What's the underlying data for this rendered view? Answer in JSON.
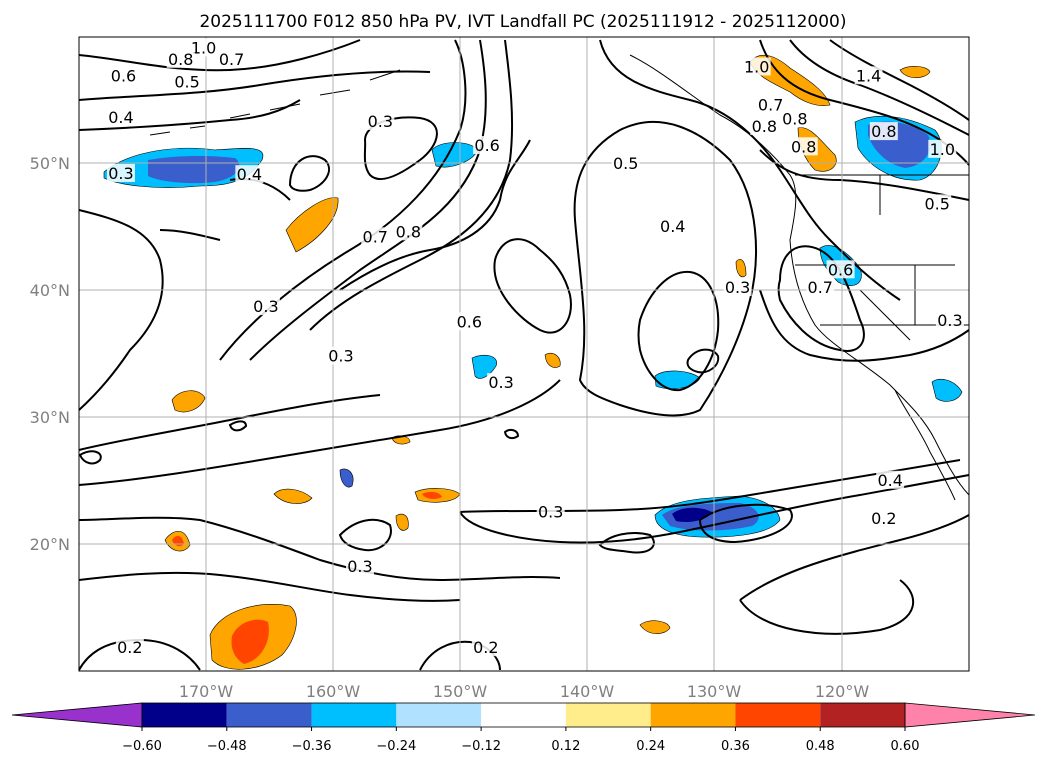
{
  "chart_data": {
    "type": "contour-map",
    "title": "2025111700 F012 850 hPa PV, IVT Landfall PC (2025111912 - 2025112000)",
    "x_range": [
      -180,
      -110
    ],
    "y_range": [
      10,
      60
    ],
    "grid": true,
    "x_ticks": [
      {
        "value": -170,
        "label": "170°W"
      },
      {
        "value": -160,
        "label": "160°W"
      },
      {
        "value": -150,
        "label": "150°W"
      },
      {
        "value": -140,
        "label": "140°W"
      },
      {
        "value": -130,
        "label": "130°W"
      },
      {
        "value": -120,
        "label": "120°W"
      }
    ],
    "y_ticks": [
      {
        "value": 20,
        "label": "20°N"
      },
      {
        "value": 30,
        "label": "30°N"
      },
      {
        "value": 40,
        "label": "40°N"
      },
      {
        "value": 50,
        "label": "50°N"
      }
    ],
    "colorbar": {
      "levels": [
        -0.6,
        -0.48,
        -0.36,
        -0.24,
        -0.12,
        0.12,
        0.24,
        0.36,
        0.48,
        0.6
      ],
      "tick_labels": [
        "−0.60",
        "−0.48",
        "−0.36",
        "−0.24",
        "−0.12",
        "0.12",
        "0.24",
        "0.36",
        "0.48",
        "0.60"
      ],
      "colors": [
        "#9932cc",
        "#00008b",
        "#3a5fcd",
        "#00bfff",
        "#b0e2ff",
        "#ffffff",
        "#ffec8b",
        "#ffa500",
        "#ff4500",
        "#b22222",
        "#ff82ab"
      ],
      "extend": "both"
    },
    "contour_labels": [
      {
        "lon": -170.2,
        "lat": 59.1,
        "text": "1.0"
      },
      {
        "lon": -172.0,
        "lat": 58.2,
        "text": "0.8"
      },
      {
        "lon": -168.0,
        "lat": 58.2,
        "text": "0.7"
      },
      {
        "lon": -176.5,
        "lat": 56.9,
        "text": "0.6"
      },
      {
        "lon": -171.5,
        "lat": 56.4,
        "text": "0.5"
      },
      {
        "lon": -176.7,
        "lat": 53.6,
        "text": "0.4"
      },
      {
        "lon": -156.3,
        "lat": 53.3,
        "text": "0.3"
      },
      {
        "lon": -166.6,
        "lat": 49.1,
        "text": "0.4"
      },
      {
        "lon": -176.7,
        "lat": 49.2,
        "text": "0.3"
      },
      {
        "lon": -147.9,
        "lat": 51.4,
        "text": "0.6"
      },
      {
        "lon": -137.0,
        "lat": 50.0,
        "text": "0.5"
      },
      {
        "lon": -156.7,
        "lat": 44.2,
        "text": "0.7"
      },
      {
        "lon": -154.1,
        "lat": 44.6,
        "text": "0.8"
      },
      {
        "lon": -133.3,
        "lat": 45.0,
        "text": "0.4"
      },
      {
        "lon": -165.3,
        "lat": 38.7,
        "text": "0.3"
      },
      {
        "lon": -149.3,
        "lat": 37.5,
        "text": "0.6"
      },
      {
        "lon": -159.4,
        "lat": 34.8,
        "text": "0.3"
      },
      {
        "lon": -146.8,
        "lat": 32.7,
        "text": "0.3"
      },
      {
        "lon": -128.2,
        "lat": 40.2,
        "text": "0.3"
      },
      {
        "lon": -121.7,
        "lat": 40.2,
        "text": "0.7"
      },
      {
        "lon": -120.1,
        "lat": 41.6,
        "text": "0.6"
      },
      {
        "lon": -126.7,
        "lat": 57.6,
        "text": "1.0"
      },
      {
        "lon": -125.6,
        "lat": 54.6,
        "text": "0.7"
      },
      {
        "lon": -123.7,
        "lat": 53.5,
        "text": "0.8"
      },
      {
        "lon": -126.1,
        "lat": 52.9,
        "text": "0.8"
      },
      {
        "lon": -123.0,
        "lat": 51.3,
        "text": "0.8"
      },
      {
        "lon": -117.9,
        "lat": 56.9,
        "text": "1.4"
      },
      {
        "lon": -116.7,
        "lat": 52.5,
        "text": "0.8"
      },
      {
        "lon": -112.1,
        "lat": 51.1,
        "text": "1.0"
      },
      {
        "lon": -112.5,
        "lat": 46.8,
        "text": "0.5"
      },
      {
        "lon": -111.5,
        "lat": 37.6,
        "text": "0.3"
      },
      {
        "lon": -116.2,
        "lat": 25.0,
        "text": "0.4"
      },
      {
        "lon": -116.7,
        "lat": 22.0,
        "text": "0.2"
      },
      {
        "lon": -142.9,
        "lat": 22.5,
        "text": "0.3"
      },
      {
        "lon": -157.9,
        "lat": 18.2,
        "text": "0.3"
      },
      {
        "lon": -176.0,
        "lat": 11.8,
        "text": "0.2"
      },
      {
        "lon": -148.0,
        "lat": 11.8,
        "text": "0.2"
      }
    ]
  }
}
